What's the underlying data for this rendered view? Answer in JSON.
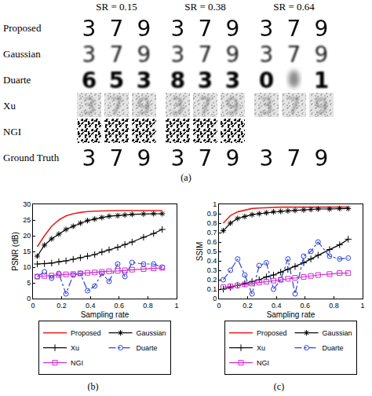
{
  "panel_a": {
    "label": "(a)",
    "columns": [
      "SR = 0.15",
      "SR = 0.38",
      "SR = 0.64"
    ],
    "rows": [
      {
        "label": "Proposed",
        "groups": [
          [
            "3",
            "7",
            "9"
          ],
          [
            "3",
            "7",
            "9"
          ],
          [
            "3",
            "7",
            "9"
          ]
        ]
      },
      {
        "label": "Gaussian",
        "groups": [
          [
            "3",
            "7",
            "9"
          ],
          [
            "3",
            "7",
            "9"
          ],
          [
            "3",
            "7",
            "9"
          ]
        ]
      },
      {
        "label": "Duarte",
        "groups": [
          [
            "6",
            "5",
            "3"
          ],
          [
            "8",
            "3",
            "3"
          ],
          [
            "0",
            null,
            "1"
          ]
        ]
      },
      {
        "label": "Xu",
        "groups": [
          [
            "3",
            "7",
            "9"
          ],
          [
            "3",
            "7",
            "9"
          ],
          [
            "3",
            "7",
            "9"
          ]
        ]
      },
      {
        "label": "NGI",
        "groups": [
          [
            null,
            null,
            null
          ],
          [
            null,
            null,
            null
          ],
          []
        ]
      },
      {
        "label": "Ground Truth",
        "groups": [
          [
            "3",
            "7",
            "9"
          ],
          [
            "3",
            "7",
            "9"
          ],
          [
            "3",
            "7",
            "9"
          ]
        ]
      }
    ]
  },
  "chart_data": [
    {
      "type": "line",
      "title": "(b)",
      "x_label": "Sampling rate",
      "y_label": "PSNR (dB)",
      "x": [
        0.03,
        0.08,
        0.13,
        0.18,
        0.23,
        0.28,
        0.33,
        0.38,
        0.43,
        0.48,
        0.53,
        0.59,
        0.64,
        0.69,
        0.77,
        0.84,
        0.9
      ],
      "series": [
        {
          "name": "Proposed",
          "color": "#e8231e",
          "marker": "none",
          "line_style": "solid",
          "values": [
            16.5,
            20,
            23,
            25,
            26.3,
            27,
            27.4,
            27.7,
            27.8,
            27.9,
            28,
            28,
            28,
            28,
            28,
            28,
            28
          ]
        },
        {
          "name": "Gaussian",
          "color": "#000000",
          "marker": "asterisk",
          "line_style": "solid",
          "values": [
            13.5,
            17,
            19,
            20.5,
            22,
            23,
            24,
            24.8,
            25.3,
            25.8,
            26.2,
            26.4,
            26.6,
            26.8,
            26.9,
            27,
            27
          ]
        },
        {
          "name": "Xu",
          "color": "#000000",
          "marker": "plus",
          "line_style": "solid",
          "values": [
            11,
            11.1,
            11.3,
            11.7,
            12,
            12.5,
            13,
            13.5,
            14,
            14.8,
            15.5,
            16.3,
            17.2,
            18,
            19.5,
            20.7,
            22
          ]
        },
        {
          "name": "Duarte",
          "color": "#2c43d6",
          "marker": "circle",
          "line_style": "dashdot",
          "values": [
            7,
            8.5,
            6.5,
            8,
            1.5,
            7.5,
            8,
            2.5,
            4,
            8,
            5.5,
            11,
            7,
            11.5,
            11,
            11,
            10
          ]
        },
        {
          "name": "NGI",
          "color": "#d12bd1",
          "marker": "square",
          "line_style": "solid",
          "values": [
            7,
            7.2,
            7.3,
            7.5,
            7.7,
            7.8,
            8,
            8.2,
            8.3,
            8.5,
            8.7,
            8.8,
            9,
            9.2,
            9.4,
            9.6,
            9.8
          ]
        }
      ],
      "xlim": [
        0,
        1
      ],
      "xticks": [
        0,
        0.2,
        0.4,
        0.6,
        0.8,
        1
      ],
      "ylim": [
        0,
        30
      ],
      "yticks": [
        0,
        5,
        10,
        15,
        20,
        25,
        30
      ],
      "grid": false,
      "legend": "bottom"
    },
    {
      "type": "line",
      "title": "(c)",
      "x_label": "Sampling rate",
      "y_label": "SSIM",
      "x": [
        0.03,
        0.08,
        0.13,
        0.18,
        0.23,
        0.28,
        0.33,
        0.38,
        0.43,
        0.48,
        0.53,
        0.59,
        0.64,
        0.69,
        0.77,
        0.84,
        0.9
      ],
      "series": [
        {
          "name": "Proposed",
          "color": "#e8231e",
          "marker": "none",
          "line_style": "solid",
          "values": [
            0.8,
            0.88,
            0.92,
            0.94,
            0.955,
            0.96,
            0.965,
            0.97,
            0.97,
            0.97,
            0.97,
            0.97,
            0.97,
            0.97,
            0.97,
            0.97,
            0.97
          ]
        },
        {
          "name": "Gaussian",
          "color": "#000000",
          "marker": "asterisk",
          "line_style": "solid",
          "values": [
            0.72,
            0.8,
            0.85,
            0.87,
            0.89,
            0.9,
            0.91,
            0.92,
            0.925,
            0.93,
            0.935,
            0.94,
            0.945,
            0.95,
            0.95,
            0.955,
            0.955
          ]
        },
        {
          "name": "Xu",
          "color": "#000000",
          "marker": "plus",
          "line_style": "solid",
          "values": [
            0.1,
            0.12,
            0.14,
            0.16,
            0.18,
            0.2,
            0.23,
            0.25,
            0.28,
            0.31,
            0.34,
            0.38,
            0.42,
            0.46,
            0.52,
            0.57,
            0.63
          ]
        },
        {
          "name": "Duarte",
          "color": "#2c43d6",
          "marker": "circle",
          "line_style": "dashdot",
          "values": [
            0.2,
            0.3,
            0.42,
            0.25,
            0.05,
            0.35,
            0.38,
            0.1,
            0.2,
            0.42,
            0.05,
            0.45,
            0.5,
            0.6,
            0.45,
            0.42,
            0.43
          ]
        },
        {
          "name": "NGI",
          "color": "#d12bd1",
          "marker": "square",
          "line_style": "solid",
          "values": [
            0.12,
            0.13,
            0.14,
            0.15,
            0.16,
            0.17,
            0.18,
            0.19,
            0.2,
            0.21,
            0.22,
            0.23,
            0.24,
            0.25,
            0.26,
            0.27,
            0.27
          ]
        }
      ],
      "xlim": [
        0,
        1
      ],
      "xticks": [
        0,
        0.2,
        0.4,
        0.6,
        0.8,
        1
      ],
      "ylim": [
        0,
        1
      ],
      "yticks": [
        0,
        0.1,
        0.2,
        0.3,
        0.4,
        0.5,
        0.6,
        0.7,
        0.8,
        0.9,
        1
      ],
      "grid": false,
      "legend": "bottom"
    }
  ]
}
